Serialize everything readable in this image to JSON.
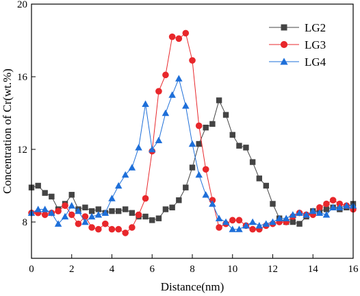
{
  "chart_data": {
    "type": "line",
    "xlabel": "Distance(nm)",
    "ylabel": "Concentration of Cr(wt.%)",
    "xlim": [
      0,
      16
    ],
    "ylim": [
      6,
      20
    ],
    "xticks": [
      0,
      2,
      4,
      6,
      8,
      10,
      12,
      14,
      16
    ],
    "yticks": [
      8,
      12,
      16,
      20
    ],
    "grid": false,
    "legend_position": "top-right",
    "series": [
      {
        "name": "LG2",
        "color": "#444444",
        "marker": "square",
        "x": [
          0.0,
          0.33,
          0.67,
          1.0,
          1.33,
          1.67,
          2.0,
          2.33,
          2.67,
          3.0,
          3.33,
          3.67,
          4.0,
          4.33,
          4.67,
          5.0,
          5.33,
          5.67,
          6.0,
          6.33,
          6.67,
          7.0,
          7.33,
          7.67,
          8.0,
          8.33,
          8.67,
          9.0,
          9.33,
          9.67,
          10.0,
          10.33,
          10.67,
          11.0,
          11.33,
          11.67,
          12.0,
          12.33,
          12.67,
          13.0,
          13.33,
          13.67,
          14.0,
          14.33,
          14.67,
          15.0,
          15.33,
          15.67,
          16.0
        ],
        "y": [
          9.9,
          10.0,
          9.6,
          9.4,
          8.7,
          9.0,
          9.5,
          8.7,
          8.8,
          8.6,
          8.7,
          8.5,
          8.6,
          8.6,
          8.7,
          8.5,
          8.3,
          8.3,
          8.1,
          8.2,
          8.7,
          8.8,
          9.2,
          9.9,
          11.0,
          12.3,
          13.2,
          13.4,
          14.7,
          13.9,
          12.8,
          12.2,
          12.1,
          11.3,
          10.4,
          10.0,
          9.0,
          8.2,
          8.0,
          8.0,
          7.9,
          8.3,
          8.6,
          8.6,
          8.7,
          8.8,
          8.7,
          8.8,
          9.0
        ]
      },
      {
        "name": "LG3",
        "color": "#e8272b",
        "marker": "circle",
        "x": [
          0.0,
          0.33,
          0.67,
          1.0,
          1.33,
          1.67,
          2.0,
          2.33,
          2.67,
          3.0,
          3.33,
          3.67,
          4.0,
          4.33,
          4.67,
          5.0,
          5.33,
          5.67,
          6.0,
          6.33,
          6.67,
          7.0,
          7.33,
          7.67,
          8.0,
          8.33,
          8.67,
          9.0,
          9.33,
          9.67,
          10.0,
          10.33,
          10.67,
          11.0,
          11.33,
          11.67,
          12.0,
          12.33,
          12.67,
          13.0,
          13.33,
          13.67,
          14.0,
          14.33,
          14.67,
          15.0,
          15.33,
          15.67,
          16.0
        ],
        "y": [
          8.5,
          8.5,
          8.4,
          8.5,
          8.6,
          8.9,
          8.4,
          7.9,
          8.3,
          7.7,
          7.6,
          7.9,
          7.6,
          7.6,
          7.4,
          7.7,
          8.4,
          9.3,
          11.9,
          15.2,
          16.1,
          18.2,
          18.1,
          18.4,
          16.9,
          13.3,
          10.9,
          9.2,
          7.7,
          7.9,
          8.1,
          8.1,
          7.8,
          7.6,
          7.6,
          7.8,
          7.9,
          8.0,
          8.0,
          8.3,
          8.5,
          8.4,
          8.4,
          8.8,
          9.0,
          9.2,
          9.0,
          8.9,
          8.7
        ]
      },
      {
        "name": "LG4",
        "color": "#1e6fd9",
        "marker": "triangle",
        "x": [
          0.0,
          0.33,
          0.67,
          1.0,
          1.33,
          1.67,
          2.0,
          2.33,
          2.67,
          3.0,
          3.33,
          3.67,
          4.0,
          4.33,
          4.67,
          5.0,
          5.33,
          5.67,
          6.0,
          6.33,
          6.67,
          7.0,
          7.33,
          7.67,
          8.0,
          8.33,
          8.67,
          9.0,
          9.33,
          9.67,
          10.0,
          10.33,
          10.67,
          11.0,
          11.33,
          11.67,
          12.0,
          12.33,
          12.67,
          13.0,
          13.33,
          13.67,
          14.0,
          14.33,
          14.67,
          15.0,
          15.33,
          15.67,
          16.0
        ],
        "y": [
          8.5,
          8.7,
          8.7,
          8.5,
          7.9,
          8.3,
          8.9,
          8.6,
          8.0,
          8.3,
          8.4,
          8.5,
          9.3,
          10.0,
          10.6,
          11.0,
          12.1,
          14.5,
          12.0,
          12.5,
          14.0,
          15.0,
          15.9,
          14.4,
          12.3,
          10.6,
          9.5,
          9.0,
          8.2,
          8.0,
          7.6,
          7.6,
          7.8,
          8.0,
          7.8,
          7.9,
          8.0,
          8.2,
          8.2,
          8.4,
          8.5,
          8.4,
          8.6,
          8.5,
          8.4,
          8.8,
          8.8,
          8.9,
          8.9
        ]
      }
    ]
  }
}
